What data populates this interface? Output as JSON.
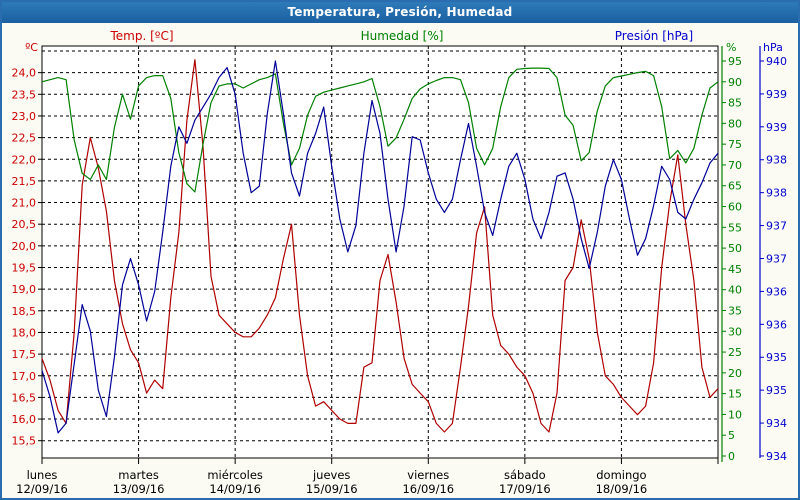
{
  "window": {
    "title": "Temperatura, Presión, Humedad"
  },
  "legend": {
    "temp": "Temp. [ºC]",
    "humidity": "Humedad [%]",
    "pressure": "Presión [hPa]"
  },
  "colors": {
    "temp_line": "#b00000",
    "temp_label": "#cc0000",
    "humidity_line": "#008000",
    "humidity_label": "#008000",
    "pressure_line": "#000099",
    "pressure_label": "#0000cc",
    "grid": "#000000",
    "titlebar": "#2170ae",
    "window_border": "#2a6cb0"
  },
  "axes": {
    "left": {
      "unit": "ºC",
      "labels": [
        "24,0",
        "23,5",
        "23,0",
        "22,5",
        "22,0",
        "21,5",
        "21,0",
        "20,5",
        "20,0",
        "19,5",
        "19,0",
        "18,5",
        "18,0",
        "17,5",
        "17,0",
        "16,5",
        "16,0",
        "15,5"
      ]
    },
    "percent": {
      "unit": "%",
      "labels": [
        "95",
        "90",
        "85",
        "80",
        "75",
        "70",
        "65",
        "60",
        "55",
        "50",
        "45",
        "40",
        "35",
        "30",
        "25",
        "20",
        "15",
        "10",
        "5",
        "0"
      ]
    },
    "pressure": {
      "unit": "hPa",
      "labels": [
        "940",
        "939",
        "939",
        "938",
        "938",
        "937",
        "937",
        "936",
        "936",
        "935",
        "935",
        "934",
        "934"
      ]
    },
    "x": {
      "day_names": [
        "lunes",
        "martes",
        "miércoles",
        "jueves",
        "viernes",
        "sábado",
        "domingo"
      ],
      "dates": [
        "12/09/16",
        "13/09/16",
        "14/09/16",
        "15/09/16",
        "16/09/16",
        "17/09/16",
        "18/09/16"
      ]
    }
  },
  "chart_data": {
    "type": "line",
    "title": "Temperatura, Presión, Humedad",
    "x_axis": {
      "days": 7,
      "step_hours": 2,
      "first_day": "lunes 12/09/16",
      "last_day": "domingo 18/09/16"
    },
    "grid": "dashed",
    "series": [
      {
        "name": "Temp. [ºC]",
        "axis": "temp",
        "color": "#b00000",
        "axis_range": [
          15.5,
          24.0
        ],
        "tick_step": 0.5,
        "values": [
          17.4,
          16.9,
          16.2,
          15.9,
          18.0,
          21.4,
          22.5,
          21.8,
          20.8,
          19.2,
          18.2,
          17.6,
          17.3,
          16.6,
          16.9,
          16.7,
          18.8,
          20.3,
          22.9,
          24.3,
          22.3,
          19.3,
          18.4,
          18.2,
          18.0,
          17.9,
          17.9,
          18.1,
          18.4,
          18.8,
          19.7,
          20.5,
          18.4,
          17.0,
          16.3,
          16.4,
          16.2,
          16.0,
          15.9,
          15.9,
          17.2,
          17.3,
          19.2,
          19.8,
          18.7,
          17.4,
          16.8,
          16.6,
          16.4,
          15.9,
          15.7,
          15.9,
          17.2,
          18.6,
          20.3,
          20.9,
          18.4,
          17.7,
          17.5,
          17.2,
          17.0,
          16.6,
          15.9,
          15.7,
          16.6,
          19.2,
          19.5,
          20.6,
          19.7,
          18.0,
          17.0,
          16.8,
          16.5,
          16.3,
          16.1,
          16.3,
          17.3,
          19.5,
          21.0,
          22.1,
          20.5,
          19.2,
          17.2,
          16.5,
          16.7
        ]
      },
      {
        "name": "Humedad [%]",
        "axis": "pct",
        "color": "#008000",
        "axis_range": [
          0,
          95
        ],
        "tick_step": 5,
        "values": [
          90,
          90.5,
          91,
          90.5,
          76,
          68,
          66.5,
          70,
          66.5,
          79,
          87,
          81,
          89,
          91,
          91.5,
          91.5,
          86,
          73,
          65.5,
          63.5,
          75,
          85,
          89,
          89.5,
          89.5,
          88.5,
          89.5,
          90.5,
          91,
          91.9,
          80,
          70,
          74,
          82,
          86.5,
          87.5,
          88,
          88.5,
          89,
          89.5,
          90,
          90.8,
          84,
          74.5,
          76.5,
          81,
          86,
          88.3,
          89.5,
          90.3,
          91,
          91,
          90.5,
          85,
          74,
          70,
          74,
          84,
          91,
          93,
          93.2,
          93.3,
          93.3,
          93.2,
          91,
          82,
          79.5,
          71,
          73,
          83,
          89,
          91,
          91.4,
          91.8,
          92.2,
          92.5,
          91.5,
          84,
          71.5,
          73.5,
          70.5,
          74,
          82,
          88.5,
          90
        ]
      },
      {
        "name": "Presión [hPa]",
        "axis": "pres",
        "color": "#000099",
        "axis_range": [
          934,
          940
        ],
        "tick_step": 0.5,
        "values": [
          935.3,
          934.9,
          934.35,
          934.5,
          935.4,
          936.3,
          935.9,
          935.0,
          934.6,
          935.5,
          936.6,
          937.0,
          936.6,
          936.05,
          936.5,
          937.4,
          938.4,
          939.0,
          938.75,
          939.1,
          939.3,
          939.5,
          939.75,
          939.9,
          939.5,
          938.6,
          938.0,
          938.1,
          939.2,
          940.0,
          939.2,
          938.3,
          937.95,
          938.6,
          938.9,
          939.3,
          938.4,
          937.6,
          937.1,
          937.5,
          938.6,
          939.4,
          938.9,
          937.9,
          937.1,
          937.8,
          938.85,
          938.8,
          938.3,
          937.9,
          937.7,
          937.9,
          938.5,
          939.05,
          938.4,
          937.7,
          937.35,
          937.9,
          938.4,
          938.6,
          938.2,
          937.6,
          937.3,
          937.7,
          938.25,
          938.3,
          937.9,
          937.3,
          936.85,
          937.4,
          938.1,
          938.5,
          938.2,
          937.6,
          937.05,
          937.3,
          937.8,
          938.4,
          938.2,
          937.7,
          937.6,
          937.9,
          938.15,
          938.45,
          938.6
        ]
      }
    ]
  }
}
